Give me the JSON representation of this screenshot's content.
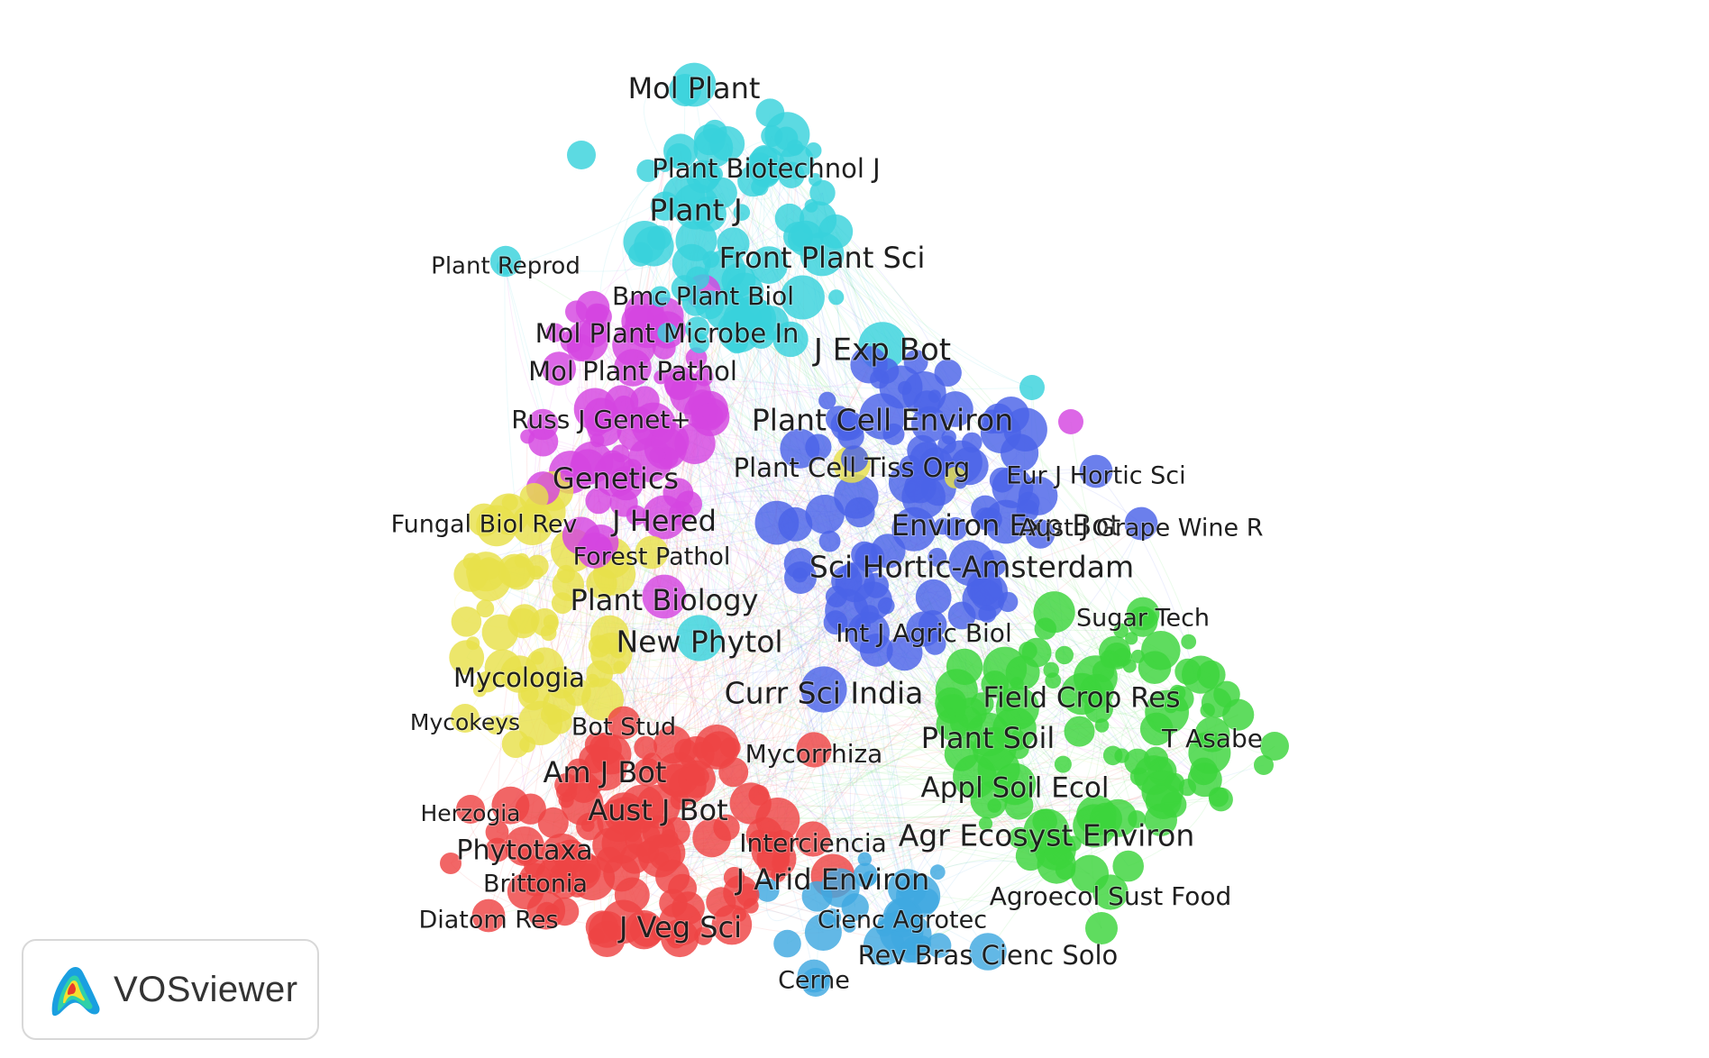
{
  "app": {
    "brand": "VOSviewer"
  },
  "legend": {
    "logo_icon": "vosviewer-density-logo-icon"
  },
  "colors": {
    "red": "#ee4444",
    "green": "#3cd43c",
    "blue": "#4a63e8",
    "yellow": "#e8e04a",
    "purple": "#d446e0",
    "cyan": "#38d2dc",
    "lightblue": "#40a8e0"
  },
  "network": {
    "labels": [
      {
        "text": "Mol Plant",
        "cluster": "cyan"
      },
      {
        "text": "Plant Biotechnol J",
        "cluster": "cyan"
      },
      {
        "text": "Plant J",
        "cluster": "cyan"
      },
      {
        "text": "Plant Reprod",
        "cluster": "cyan"
      },
      {
        "text": "Front Plant Sci",
        "cluster": "cyan"
      },
      {
        "text": "Bmc Plant Biol",
        "cluster": "purple"
      },
      {
        "text": "Mol Plant Microbe In",
        "cluster": "purple"
      },
      {
        "text": "J Exp Bot",
        "cluster": "cyan"
      },
      {
        "text": "Mol Plant Pathol",
        "cluster": "purple"
      },
      {
        "text": "Russ J Genet+",
        "cluster": "purple"
      },
      {
        "text": "Plant Cell Environ",
        "cluster": "blue"
      },
      {
        "text": "Plant Cell Tiss Org",
        "cluster": "yellow"
      },
      {
        "text": "Eur J Hortic Sci",
        "cluster": "blue"
      },
      {
        "text": "Genetics",
        "cluster": "purple"
      },
      {
        "text": "Fungal Biol Rev",
        "cluster": "yellow"
      },
      {
        "text": "J Hered",
        "cluster": "purple"
      },
      {
        "text": "Environ Exp Bot",
        "cluster": "blue"
      },
      {
        "text": "Aust J Grape Wine R",
        "cluster": "blue"
      },
      {
        "text": "Forest Pathol",
        "cluster": "yellow"
      },
      {
        "text": "Sci Hortic-Amsterdam",
        "cluster": "blue"
      },
      {
        "text": "Plant Biology",
        "cluster": "purple"
      },
      {
        "text": "Sugar Tech",
        "cluster": "green"
      },
      {
        "text": "Int J Agric Biol",
        "cluster": "blue"
      },
      {
        "text": "New Phytol",
        "cluster": "cyan"
      },
      {
        "text": "Mycologia",
        "cluster": "yellow"
      },
      {
        "text": "Curr Sci India",
        "cluster": "blue"
      },
      {
        "text": "Field Crop Res",
        "cluster": "green"
      },
      {
        "text": "Mycokeys",
        "cluster": "yellow"
      },
      {
        "text": "Bot Stud",
        "cluster": "red"
      },
      {
        "text": "Plant Soil",
        "cluster": "green"
      },
      {
        "text": "T Asabe",
        "cluster": "green"
      },
      {
        "text": "Mycorrhiza",
        "cluster": "red"
      },
      {
        "text": "Am J Bot",
        "cluster": "red"
      },
      {
        "text": "Appl Soil Ecol",
        "cluster": "green"
      },
      {
        "text": "Herzogia",
        "cluster": "red"
      },
      {
        "text": "Aust J Bot",
        "cluster": "red"
      },
      {
        "text": "Interciencia",
        "cluster": "red"
      },
      {
        "text": "Agr Ecosyst Environ",
        "cluster": "green"
      },
      {
        "text": "Phytotaxa",
        "cluster": "red"
      },
      {
        "text": "Brittonia",
        "cluster": "red"
      },
      {
        "text": "J Arid Environ",
        "cluster": "red"
      },
      {
        "text": "Agroecol Sust Food",
        "cluster": "green"
      },
      {
        "text": "Diatom Res",
        "cluster": "red"
      },
      {
        "text": "Cienc Agrotec",
        "cluster": "lightblue"
      },
      {
        "text": "J Veg Sci",
        "cluster": "red"
      },
      {
        "text": "Rev Bras Cienc Solo",
        "cluster": "lightblue"
      },
      {
        "text": "Cerne",
        "cluster": "lightblue"
      }
    ]
  }
}
